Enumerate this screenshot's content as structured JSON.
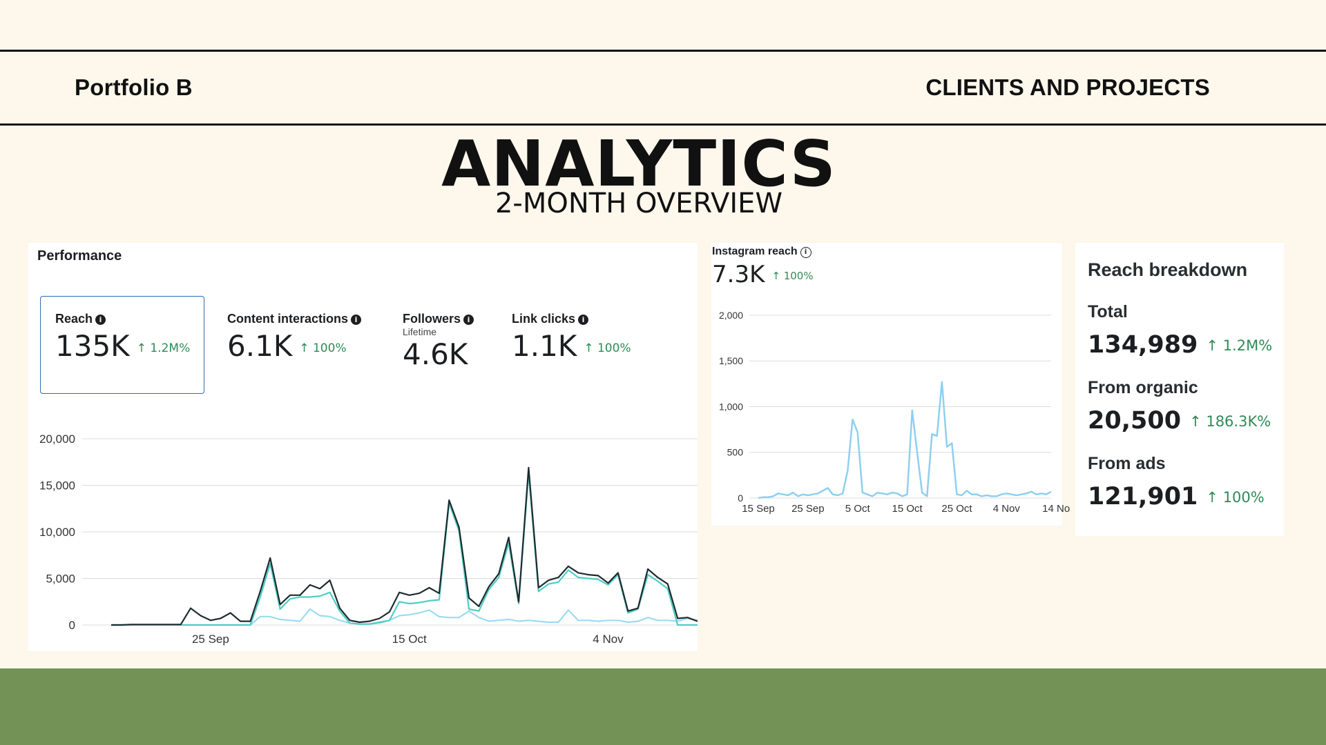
{
  "header": {
    "left": "Portfolio B",
    "right": "CLIENTS AND PROJECTS",
    "title": "ANALYTICS",
    "subtitle": "2-MONTH OVERVIEW"
  },
  "performance": {
    "title": "Performance",
    "metrics": [
      {
        "label": "Reach",
        "value": "135K",
        "trend": "↑ 1.2M%"
      },
      {
        "label": "Content interactions",
        "value": "6.1K",
        "trend": "↑ 100%"
      },
      {
        "label": "Followers",
        "sub": "Lifetime",
        "value": "4.6K"
      },
      {
        "label": "Link clicks",
        "value": "1.1K",
        "trend": "↑ 100%"
      }
    ]
  },
  "instagram": {
    "title": "Instagram reach",
    "value": "7.3K",
    "trend": "↑ 100%"
  },
  "reach_breakdown": {
    "title": "Reach breakdown",
    "rows": [
      {
        "label": "Total",
        "value": "134,989",
        "trend": "↑ 1.2M%"
      },
      {
        "label": "From organic",
        "value": "20,500",
        "trend": "↑ 186.3K%"
      },
      {
        "label": "From ads",
        "value": "121,901",
        "trend": "↑ 100%"
      }
    ]
  },
  "chart_data": [
    {
      "type": "line",
      "title": "",
      "ylim": [
        0,
        20000
      ],
      "yticks": [
        0,
        5000,
        10000,
        15000,
        20000
      ],
      "ytick_labels": [
        "0",
        "5,000",
        "10,000",
        "15,000",
        "20,000"
      ],
      "xtick_labels": [
        {
          "index": 10,
          "label": "25 Sep"
        },
        {
          "index": 30,
          "label": "15 Oct"
        },
        {
          "index": 50,
          "label": "4 Nov"
        }
      ],
      "grid": true,
      "series": [
        {
          "color": "#1e2b2f",
          "values": [
            0,
            0,
            50,
            50,
            50,
            50,
            50,
            50,
            1800,
            1000,
            500,
            700,
            1300,
            400,
            400,
            3600,
            7200,
            2200,
            3200,
            3200,
            4300,
            3900,
            4800,
            1800,
            500,
            300,
            400,
            700,
            1400,
            3500,
            3200,
            3400,
            4000,
            3400,
            13400,
            10500,
            2900,
            2000,
            4100,
            5500,
            9400,
            2500,
            16900,
            4000,
            4800,
            5100,
            6300,
            5600,
            5400,
            5300,
            4500,
            5600,
            1500,
            1800,
            6000,
            5100,
            4400,
            700,
            800,
            400
          ]
        },
        {
          "color": "#4ecdc4",
          "values": [
            0,
            0,
            0,
            0,
            0,
            0,
            0,
            0,
            0,
            0,
            0,
            0,
            0,
            0,
            0,
            3000,
            6600,
            1700,
            2800,
            3000,
            3000,
            3100,
            3500,
            1500,
            200,
            100,
            100,
            300,
            500,
            2500,
            2300,
            2400,
            2600,
            2700,
            13100,
            10100,
            1700,
            1500,
            3800,
            5100,
            8800,
            2300,
            16300,
            3600,
            4400,
            4600,
            5900,
            5100,
            5000,
            4900,
            4300,
            5400,
            1300,
            1700,
            5400,
            4700,
            3900,
            0,
            0,
            0
          ]
        },
        {
          "color": "#9adcf2",
          "values": [
            0,
            0,
            0,
            0,
            0,
            0,
            0,
            0,
            0,
            0,
            0,
            0,
            0,
            0,
            0,
            900,
            900,
            600,
            500,
            400,
            1700,
            1000,
            900,
            500,
            200,
            100,
            100,
            200,
            500,
            1000,
            1100,
            1300,
            1600,
            900,
            800,
            800,
            1500,
            800,
            400,
            500,
            600,
            400,
            500,
            400,
            300,
            300,
            1600,
            500,
            500,
            400,
            500,
            500,
            300,
            400,
            800,
            500,
            500,
            400,
            700,
            500
          ]
        }
      ]
    },
    {
      "type": "line",
      "title": "Instagram reach",
      "ylim": [
        0,
        2000
      ],
      "yticks": [
        0,
        500,
        1000,
        1500,
        2000
      ],
      "ytick_labels": [
        "0",
        "500",
        "1,000",
        "1,500",
        "2,000"
      ],
      "xtick_labels": [
        {
          "index": 0,
          "label": "15 Sep"
        },
        {
          "index": 10,
          "label": "25 Sep"
        },
        {
          "index": 20,
          "label": "5 Oct"
        },
        {
          "index": 30,
          "label": "15 Oct"
        },
        {
          "index": 40,
          "label": "25 Oct"
        },
        {
          "index": 50,
          "label": "4 Nov"
        },
        {
          "index": 60,
          "label": "14 No"
        }
      ],
      "grid": true,
      "series": [
        {
          "color": "#8ecff0",
          "values": [
            0,
            10,
            10,
            20,
            50,
            40,
            30,
            60,
            20,
            40,
            30,
            40,
            50,
            80,
            110,
            40,
            30,
            50,
            300,
            860,
            720,
            60,
            40,
            20,
            60,
            50,
            40,
            60,
            50,
            20,
            40,
            960,
            500,
            60,
            20,
            700,
            680,
            1270,
            560,
            600,
            40,
            30,
            80,
            40,
            40,
            20,
            30,
            20,
            20,
            40,
            50,
            40,
            30,
            40,
            50,
            70,
            40,
            50,
            40,
            70
          ]
        }
      ]
    }
  ]
}
